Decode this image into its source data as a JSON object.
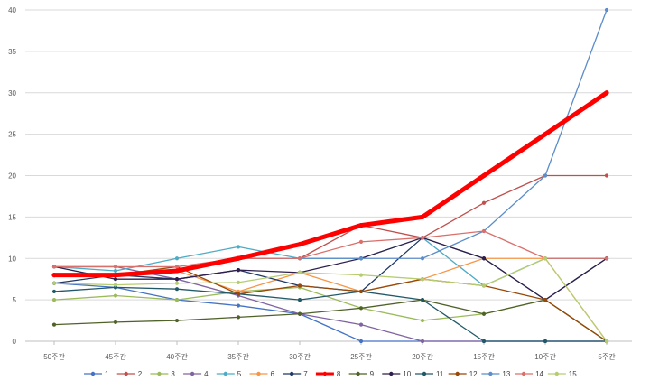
{
  "chart_data": {
    "type": "line",
    "title": "",
    "xlabel": "",
    "ylabel": "",
    "ylim": [
      0,
      40
    ],
    "yticks": [
      0,
      5,
      10,
      15,
      20,
      25,
      30,
      35,
      40
    ],
    "grid": "horizontal",
    "legend": "bottom",
    "categories": [
      "50주간",
      "45주간",
      "40주간",
      "35주간",
      "30주간",
      "25주간",
      "20주간",
      "15주간",
      "10주간",
      "5주간"
    ],
    "series": [
      {
        "name": "1",
        "color": "#4472c4",
        "values": [
          7,
          6.5,
          5,
          4.3,
          3.3,
          0,
          0,
          0,
          0,
          0
        ]
      },
      {
        "name": "2",
        "color": "#c0504d",
        "values": [
          8,
          8,
          8.5,
          10,
          10,
          14,
          12.5,
          16.7,
          20,
          20
        ]
      },
      {
        "name": "3",
        "color": "#9bbb59",
        "values": [
          5,
          5.5,
          5,
          6,
          6.5,
          4,
          2.5,
          3.3,
          5,
          0
        ]
      },
      {
        "name": "4",
        "color": "#8064a2",
        "values": [
          9,
          9,
          7.5,
          5.5,
          3.3,
          2,
          0,
          0,
          0,
          0
        ]
      },
      {
        "name": "5",
        "color": "#4bacc6",
        "values": [
          9,
          8.5,
          10,
          11.4,
          10,
          10,
          12.5,
          6.7,
          10,
          10
        ]
      },
      {
        "name": "6",
        "color": "#f79646",
        "values": [
          8,
          8,
          8.5,
          6,
          8.3,
          6,
          7.5,
          10,
          10,
          0
        ]
      },
      {
        "name": "7",
        "color": "#1f3864",
        "values": [
          7,
          8,
          7.5,
          8.6,
          6.7,
          6,
          12.5,
          10,
          5,
          10
        ]
      },
      {
        "name": "8",
        "color": "#ff0000",
        "values": [
          8,
          8,
          8.5,
          10,
          11.7,
          14,
          15,
          20,
          25,
          30
        ]
      },
      {
        "name": "9",
        "color": "#4f6228",
        "values": [
          2,
          2.3,
          2.5,
          2.9,
          3.3,
          4,
          5,
          3.3,
          5,
          0
        ]
      },
      {
        "name": "10",
        "color": "#2e1f4d",
        "values": [
          9,
          7.5,
          7.5,
          8.6,
          8.3,
          10,
          12.5,
          10,
          5,
          10
        ]
      },
      {
        "name": "11",
        "color": "#215968",
        "values": [
          6,
          6.5,
          6.3,
          5.7,
          5,
          6,
          5,
          0,
          0,
          0
        ]
      },
      {
        "name": "12",
        "color": "#984807",
        "values": [
          8,
          8,
          9,
          5.7,
          6.7,
          6,
          7.5,
          6.7,
          5,
          0
        ]
      },
      {
        "name": "13",
        "color": "#5b8dc9",
        "values": [
          8,
          8,
          8.5,
          10,
          10,
          10,
          10,
          13.3,
          20,
          40
        ]
      },
      {
        "name": "14",
        "color": "#d9706b",
        "values": [
          9,
          9,
          9,
          10,
          10,
          12,
          12.5,
          13.3,
          10,
          10
        ]
      },
      {
        "name": "15",
        "color": "#b5cd70",
        "values": [
          7,
          6.8,
          7,
          7.1,
          8.3,
          8,
          7.5,
          6.7,
          10,
          0
        ]
      }
    ]
  }
}
